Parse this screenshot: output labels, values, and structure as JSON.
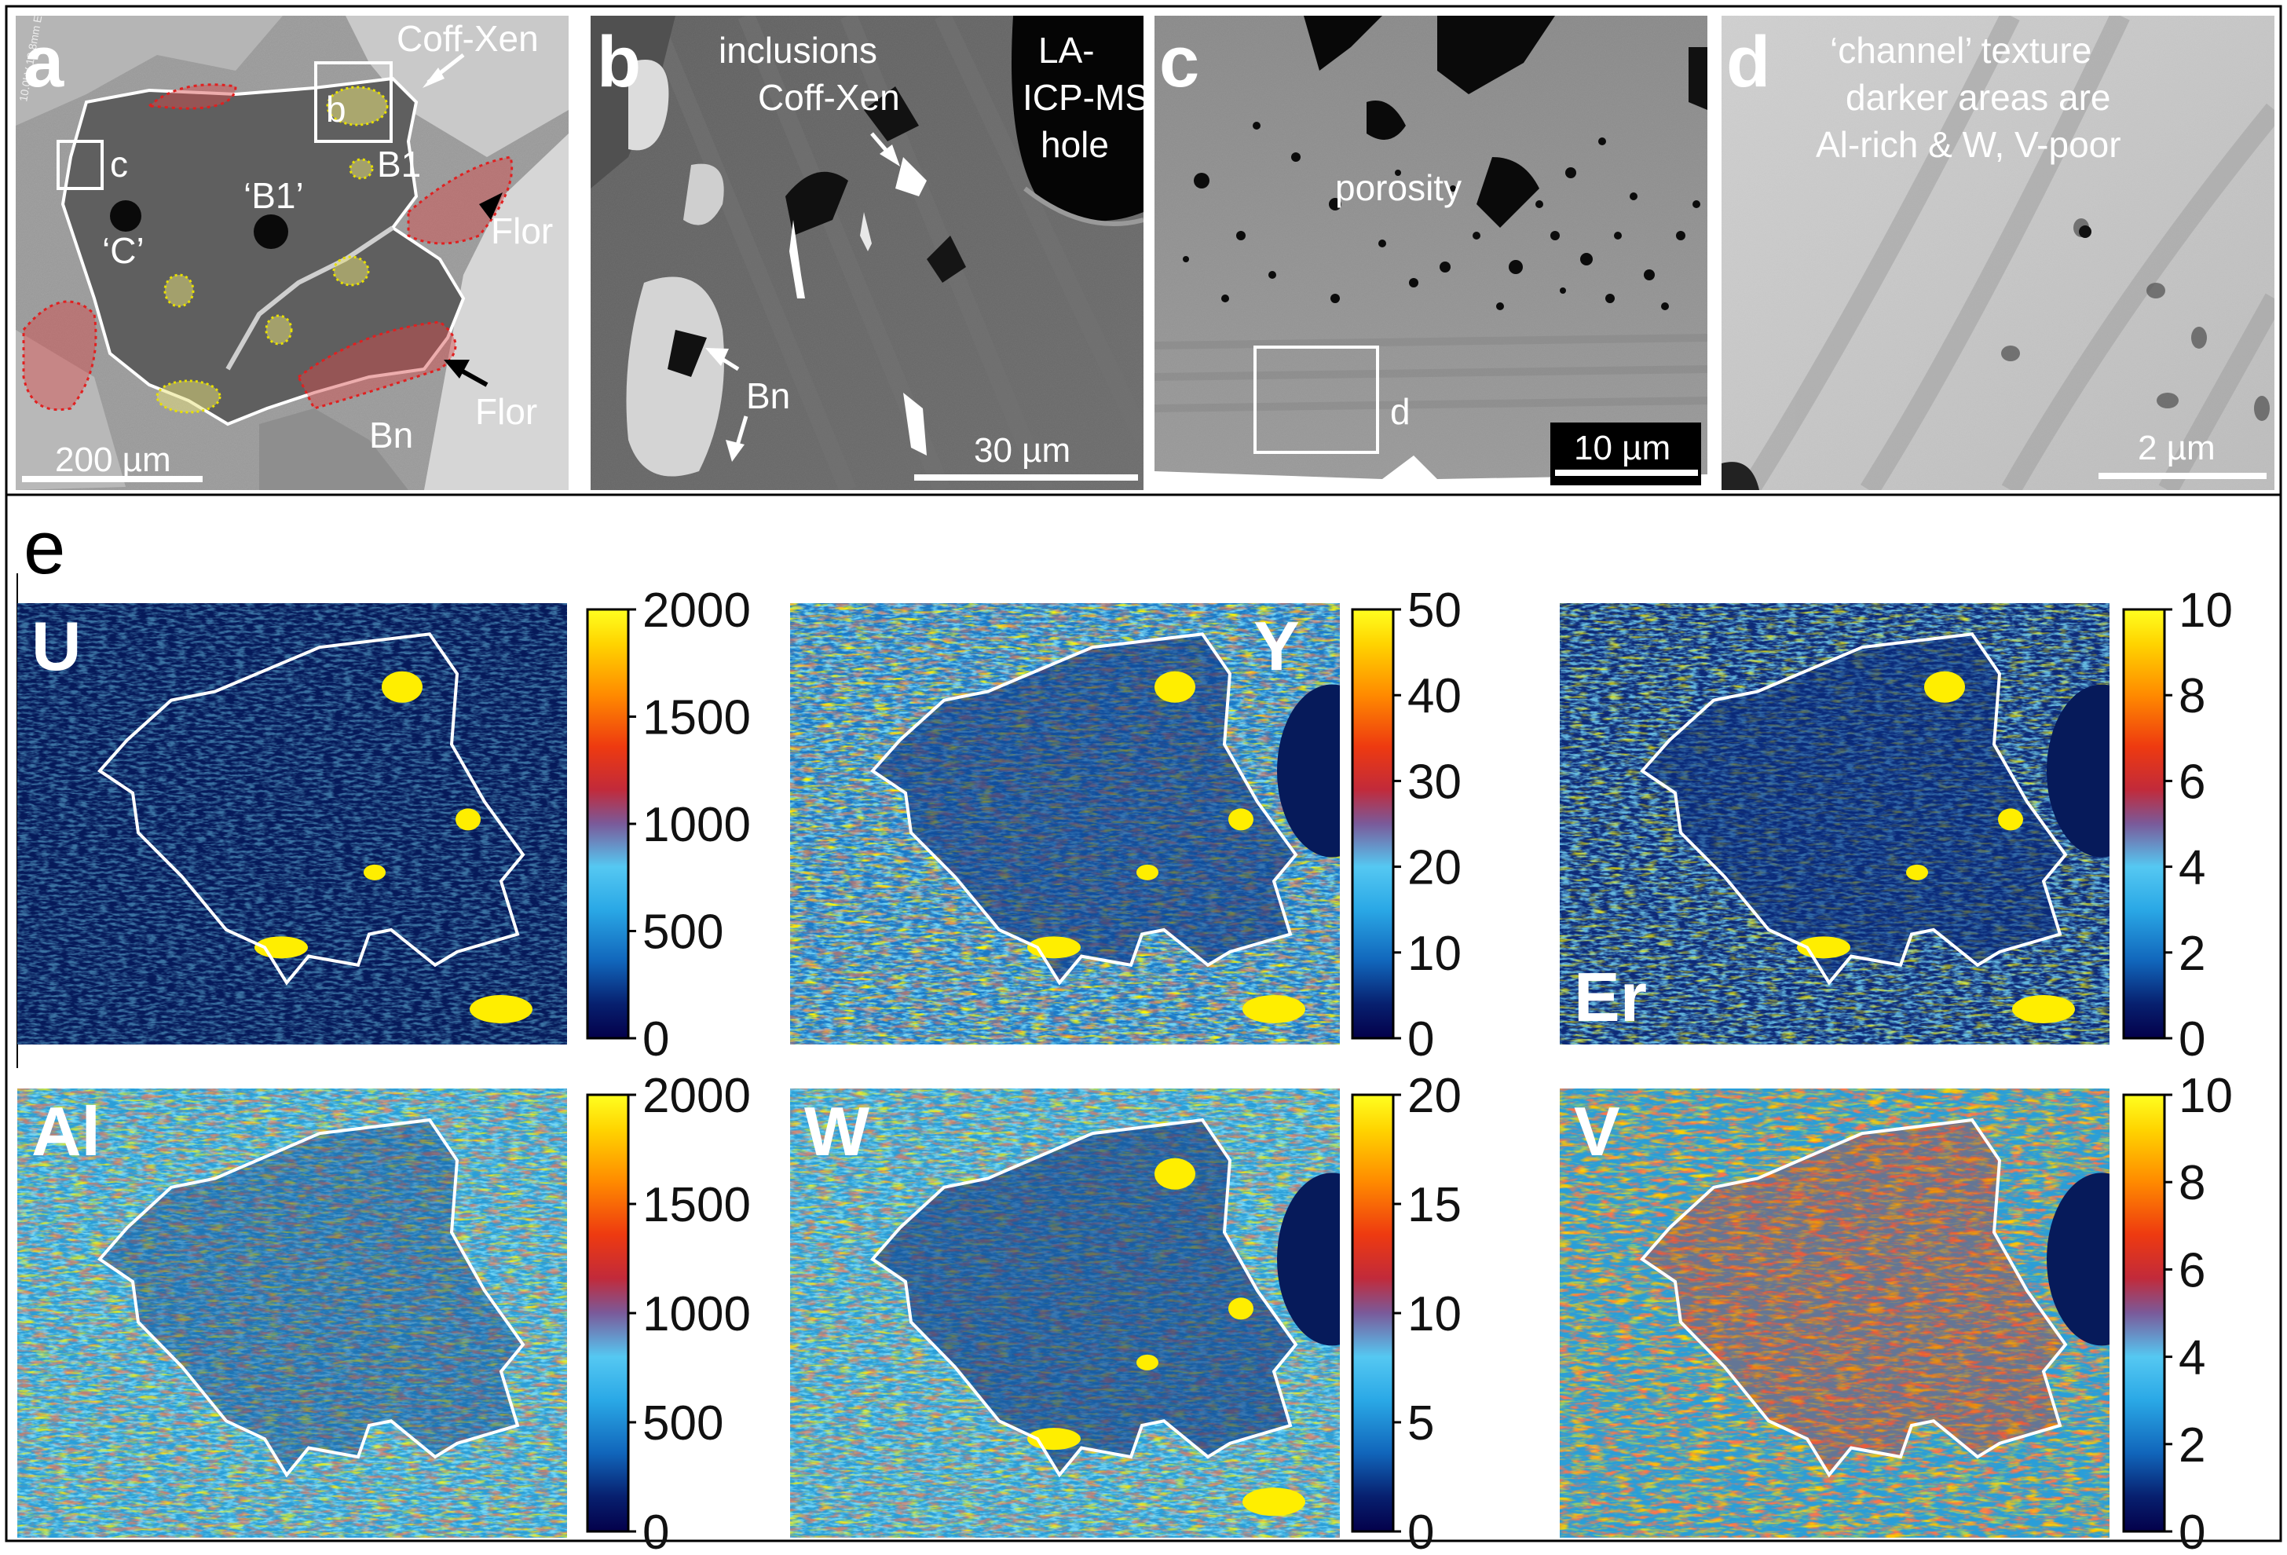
{
  "figure": {
    "panels_top": [
      {
        "id": "a",
        "label": "a",
        "annotations": {
          "coff_xen": "Coff-Xen",
          "b": "b",
          "c": "c",
          "b1_quote": "‘B1’",
          "b1": "B1",
          "c_quote": "‘C’",
          "flor_1": "Flor",
          "flor_2": "Flor",
          "bn": "Bn"
        },
        "scale_bar": "200 µm"
      },
      {
        "id": "b",
        "label": "b",
        "annotations": {
          "inclusions": "inclusions",
          "coff_xen": "Coff-Xen",
          "la": "LA-",
          "icp_ms": "ICP-MS",
          "hole": "hole",
          "bn": "Bn"
        },
        "scale_bar": "30 µm"
      },
      {
        "id": "c",
        "label": "c",
        "annotations": {
          "porosity": "porosity",
          "d": "d"
        },
        "scale_bar": "10 µm"
      },
      {
        "id": "d",
        "label": "d",
        "annotations": {
          "line1": "‘channel’ texture",
          "line2": "darker areas are",
          "line3": "Al-rich & W, V-poor"
        },
        "scale_bar": "2 µm"
      }
    ],
    "panel_e": {
      "label": "e",
      "maps": [
        {
          "element": "U",
          "ticks": [
            "2000",
            "1500",
            "1000",
            "500",
            "0"
          ],
          "style": "dark"
        },
        {
          "element": "Y",
          "ticks": [
            "50",
            "40",
            "30",
            "20",
            "10",
            "0"
          ],
          "style": "speckle"
        },
        {
          "element": "Er",
          "ticks": [
            "10",
            "8",
            "6",
            "4",
            "2",
            "0"
          ],
          "style": "mid"
        },
        {
          "element": "Al",
          "ticks": [
            "2000",
            "1500",
            "1000",
            "500",
            "0"
          ],
          "style": "cyan"
        },
        {
          "element": "W",
          "ticks": [
            "20",
            "15",
            "10",
            "5",
            "0"
          ],
          "style": "cyanw"
        },
        {
          "element": "V",
          "ticks": [
            "10",
            "8",
            "6",
            "4",
            "2",
            "0"
          ],
          "style": "hot"
        }
      ]
    },
    "colors": {
      "outline": "#ffffff",
      "red_zone": "#d84a4a",
      "yellow_zone": "#e8e27a",
      "colormap": [
        "#04004a",
        "#0a2a8a",
        "#1a8ad8",
        "#33c8f0",
        "#9a3a6a",
        "#e01a1a",
        "#ff7a00",
        "#ffd000",
        "#ffff00"
      ]
    }
  }
}
